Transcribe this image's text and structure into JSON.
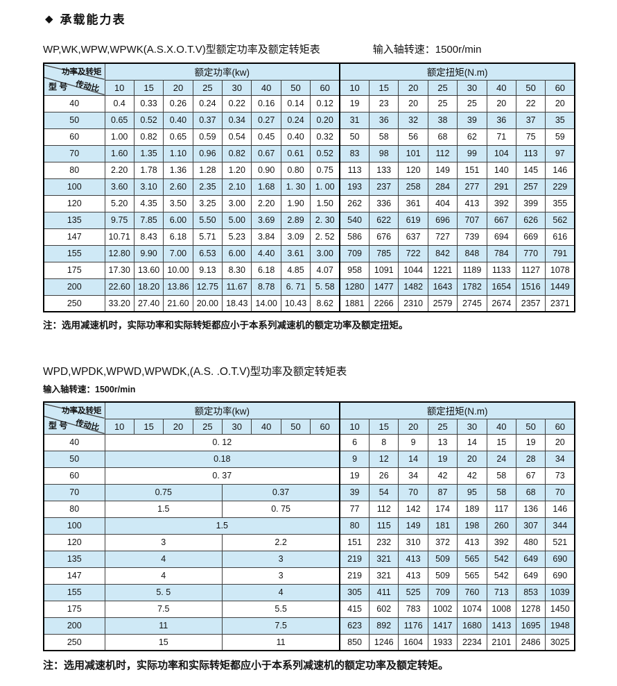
{
  "page_title": "承载能力表",
  "bullet_icon": "◆",
  "colors": {
    "highlight_blue": "#cfe9f6",
    "border_black": "#000000",
    "text": "#111111"
  },
  "table1": {
    "title": "WP,WK,WPW,WPWK(A.S.X.O.T.V)型额定功率及额定转矩表",
    "speed_label": "输入轴转速：1500r/min",
    "corner": {
      "top": "功率及转矩",
      "mid": "传动比",
      "bottom": "型 号"
    },
    "power_header": "额定功率(kw)",
    "torque_header": "额定扭矩(N.m)",
    "ratios": [
      "10",
      "15",
      "20",
      "25",
      "30",
      "40",
      "50",
      "60"
    ],
    "rows": [
      {
        "model": "40",
        "power": [
          "0.4",
          "0.33",
          "0.26",
          "0.24",
          "0.22",
          "0.16",
          "0.14",
          "0.12"
        ],
        "torque": [
          "19",
          "23",
          "20",
          "25",
          "25",
          "20",
          "22",
          "20"
        ]
      },
      {
        "model": "50",
        "power": [
          "0.65",
          "0.52",
          "0.40",
          "0.37",
          "0.34",
          "0.27",
          "0.24",
          "0.20"
        ],
        "torque": [
          "31",
          "36",
          "32",
          "38",
          "39",
          "36",
          "37",
          "35"
        ]
      },
      {
        "model": "60",
        "power": [
          "1.00",
          "0.82",
          "0.65",
          "0.59",
          "0.54",
          "0.45",
          "0.40",
          "0.32"
        ],
        "torque": [
          "50",
          "58",
          "56",
          "68",
          "62",
          "71",
          "75",
          "59"
        ]
      },
      {
        "model": "70",
        "power": [
          "1.60",
          "1.35",
          "1.10",
          "0.96",
          "0.82",
          "0.67",
          "0.61",
          "0.52"
        ],
        "torque": [
          "83",
          "98",
          "101",
          "112",
          "99",
          "104",
          "113",
          "97"
        ]
      },
      {
        "model": "80",
        "power": [
          "2.20",
          "1.78",
          "1.36",
          "1.28",
          "1.20",
          "0.90",
          "0.80",
          "0.75"
        ],
        "torque": [
          "113",
          "133",
          "120",
          "149",
          "151",
          "140",
          "145",
          "146"
        ]
      },
      {
        "model": "100",
        "power": [
          "3.60",
          "3.10",
          "2.60",
          "2.35",
          "2.10",
          "1.68",
          "1. 30",
          "1. 00"
        ],
        "torque": [
          "193",
          "237",
          "258",
          "284",
          "277",
          "291",
          "257",
          "229"
        ]
      },
      {
        "model": "120",
        "power": [
          "5.20",
          "4.35",
          "3.50",
          "3.25",
          "3.00",
          "2.20",
          "1.90",
          "1.50"
        ],
        "torque": [
          "262",
          "336",
          "361",
          "404",
          "413",
          "392",
          "399",
          "355"
        ]
      },
      {
        "model": "135",
        "power": [
          "9.75",
          "7.85",
          "6.00",
          "5.50",
          "5.00",
          "3.69",
          "2.89",
          "2. 30"
        ],
        "torque": [
          "540",
          "622",
          "619",
          "696",
          "707",
          "667",
          "626",
          "562"
        ]
      },
      {
        "model": "147",
        "power": [
          "10.71",
          "8.43",
          "6.18",
          "5.71",
          "5.23",
          "3.84",
          "3.09",
          "2. 52"
        ],
        "torque": [
          "586",
          "676",
          "637",
          "727",
          "739",
          "694",
          "669",
          "616"
        ]
      },
      {
        "model": "155",
        "power": [
          "12.80",
          "9.90",
          "7.00",
          "6.53",
          "6.00",
          "4.40",
          "3.61",
          "3.00"
        ],
        "torque": [
          "709",
          "785",
          "722",
          "842",
          "848",
          "784",
          "770",
          "791"
        ]
      },
      {
        "model": "175",
        "power": [
          "17.30",
          "13.60",
          "10.00",
          "9.13",
          "8.30",
          "6.18",
          "4.85",
          "4.07"
        ],
        "torque": [
          "958",
          "1091",
          "1044",
          "1221",
          "1189",
          "1133",
          "1127",
          "1078"
        ]
      },
      {
        "model": "200",
        "power": [
          "22.60",
          "18.20",
          "13.86",
          "12.75",
          "11.67",
          "8.78",
          "6. 71",
          "5. 58"
        ],
        "torque": [
          "1280",
          "1477",
          "1482",
          "1643",
          "1782",
          "1654",
          "1516",
          "1449"
        ]
      },
      {
        "model": "250",
        "power": [
          "33.20",
          "27.40",
          "21.60",
          "20.00",
          "18.43",
          "14.00",
          "10.43",
          "8.62"
        ],
        "torque": [
          "1881",
          "2266",
          "2310",
          "2579",
          "2745",
          "2674",
          "2357",
          "2371"
        ]
      }
    ],
    "note": "注：选用减速机时，实际功率和实际转矩都应小于本系列减速机的额定功率及额定扭矩。"
  },
  "table2": {
    "title": "WPD,WPDK,WPWD,WPWDK,(A.S. .O.T.V)型功率及额定转矩表",
    "speed_label": "输入轴转速：1500r/min",
    "corner": {
      "top": "功率及转矩",
      "mid": "传动比",
      "bottom": "型 号"
    },
    "power_header": "额定功率(kw)",
    "torque_header": "额定扭矩(N.m)",
    "ratios": [
      "10",
      "15",
      "20",
      "25",
      "30",
      "40",
      "50",
      "60"
    ],
    "rows": [
      {
        "model": "40",
        "power_cells": [
          {
            "value": "0. 12",
            "span": 8
          }
        ],
        "torque": [
          "6",
          "8",
          "9",
          "13",
          "14",
          "15",
          "19",
          "20"
        ]
      },
      {
        "model": "50",
        "power_cells": [
          {
            "value": "0.18",
            "span": 8
          }
        ],
        "torque": [
          "9",
          "12",
          "14",
          "19",
          "20",
          "24",
          "28",
          "34"
        ]
      },
      {
        "model": "60",
        "power_cells": [
          {
            "value": "0. 37",
            "span": 8
          }
        ],
        "torque": [
          "19",
          "26",
          "34",
          "42",
          "42",
          "58",
          "67",
          "73"
        ]
      },
      {
        "model": "70",
        "power_cells": [
          {
            "value": "0.75",
            "span": 4
          },
          {
            "value": "0.37",
            "span": 4
          }
        ],
        "torque": [
          "39",
          "54",
          "70",
          "87",
          "95",
          "58",
          "68",
          "70"
        ]
      },
      {
        "model": "80",
        "power_cells": [
          {
            "value": "1.5",
            "span": 4
          },
          {
            "value": "0. 75",
            "span": 4
          }
        ],
        "torque": [
          "77",
          "112",
          "142",
          "174",
          "189",
          "117",
          "136",
          "146"
        ]
      },
      {
        "model": "100",
        "power_cells": [
          {
            "value": "1.5",
            "span": 8
          }
        ],
        "torque": [
          "80",
          "115",
          "149",
          "181",
          "198",
          "260",
          "307",
          "344"
        ]
      },
      {
        "model": "120",
        "power_cells": [
          {
            "value": "3",
            "span": 4
          },
          {
            "value": "2.2",
            "span": 4
          }
        ],
        "torque": [
          "151",
          "232",
          "310",
          "372",
          "413",
          "392",
          "480",
          "521"
        ]
      },
      {
        "model": "135",
        "power_cells": [
          {
            "value": "4",
            "span": 4
          },
          {
            "value": "3",
            "span": 4
          }
        ],
        "torque": [
          "219",
          "321",
          "413",
          "509",
          "565",
          "542",
          "649",
          "690"
        ]
      },
      {
        "model": "147",
        "power_cells": [
          {
            "value": "4",
            "span": 4
          },
          {
            "value": "3",
            "span": 4
          }
        ],
        "torque": [
          "219",
          "321",
          "413",
          "509",
          "565",
          "542",
          "649",
          "690"
        ]
      },
      {
        "model": "155",
        "power_cells": [
          {
            "value": "5. 5",
            "span": 4
          },
          {
            "value": "4",
            "span": 4
          }
        ],
        "torque": [
          "305",
          "411",
          "525",
          "709",
          "760",
          "713",
          "853",
          "1039"
        ]
      },
      {
        "model": "175",
        "power_cells": [
          {
            "value": "7.5",
            "span": 4
          },
          {
            "value": "5.5",
            "span": 4
          }
        ],
        "torque": [
          "415",
          "602",
          "783",
          "1002",
          "1074",
          "1008",
          "1278",
          "1450"
        ]
      },
      {
        "model": "200",
        "power_cells": [
          {
            "value": "11",
            "span": 4
          },
          {
            "value": "7.5",
            "span": 4
          }
        ],
        "torque": [
          "623",
          "892",
          "1176",
          "1417",
          "1680",
          "1413",
          "1695",
          "1948"
        ]
      },
      {
        "model": "250",
        "power_cells": [
          {
            "value": "15",
            "span": 4
          },
          {
            "value": "11",
            "span": 4
          }
        ],
        "torque": [
          "850",
          "1246",
          "1604",
          "1933",
          "2234",
          "2101",
          "2486",
          "3025"
        ]
      }
    ],
    "note": "注：选用减速机时，实际功率和实际转矩都应小于本系列减速机的额定功率及额定转矩。"
  }
}
